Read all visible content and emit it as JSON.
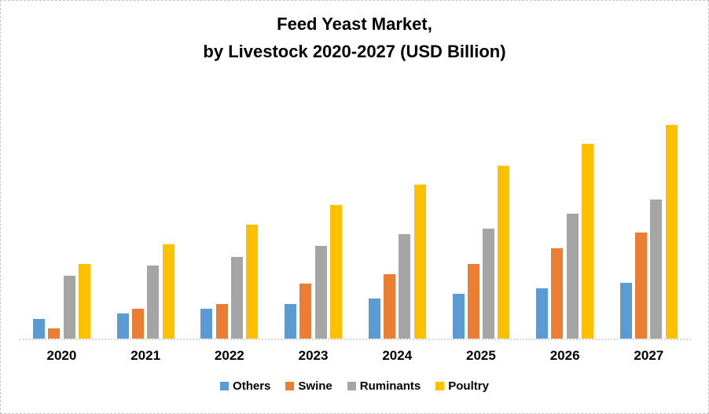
{
  "title": "Feed Yeast Market,\nby Livestock 2020-2027 (USD Billion)",
  "chart_data": {
    "type": "bar",
    "title": "Feed Yeast Market,\nby Livestock 2020-2027 (USD Billion)",
    "categories": [
      "2020",
      "2021",
      "2022",
      "2023",
      "2024",
      "2025",
      "2026",
      "2027"
    ],
    "series": [
      {
        "name": "Others",
        "color": "#5B9BD5",
        "values": [
          0.25,
          0.32,
          0.38,
          0.44,
          0.51,
          0.57,
          0.64,
          0.71
        ]
      },
      {
        "name": "Swine",
        "color": "#ED7D31",
        "values": [
          0.13,
          0.38,
          0.44,
          0.7,
          0.82,
          0.95,
          1.15,
          1.35
        ]
      },
      {
        "name": "Ruminants",
        "color": "#A5A5A5",
        "values": [
          0.8,
          0.93,
          1.04,
          1.18,
          1.33,
          1.4,
          1.59,
          1.77
        ]
      },
      {
        "name": "Poultry",
        "color": "#FFC000",
        "values": [
          0.95,
          1.2,
          1.45,
          1.7,
          1.96,
          2.2,
          2.48,
          2.72
        ]
      }
    ],
    "xlabel": "",
    "ylabel": "",
    "ylim": [
      0,
      3.0
    ],
    "y_axis_visible": false,
    "gridlines": false,
    "legend_position": "bottom",
    "values_estimated": true,
    "value_unit": "USD Billion"
  },
  "colors": {
    "canvas_border": "#c3c3c3",
    "axis_line": "#d6d6d6",
    "text": "#000000",
    "background": "#ffffff"
  }
}
